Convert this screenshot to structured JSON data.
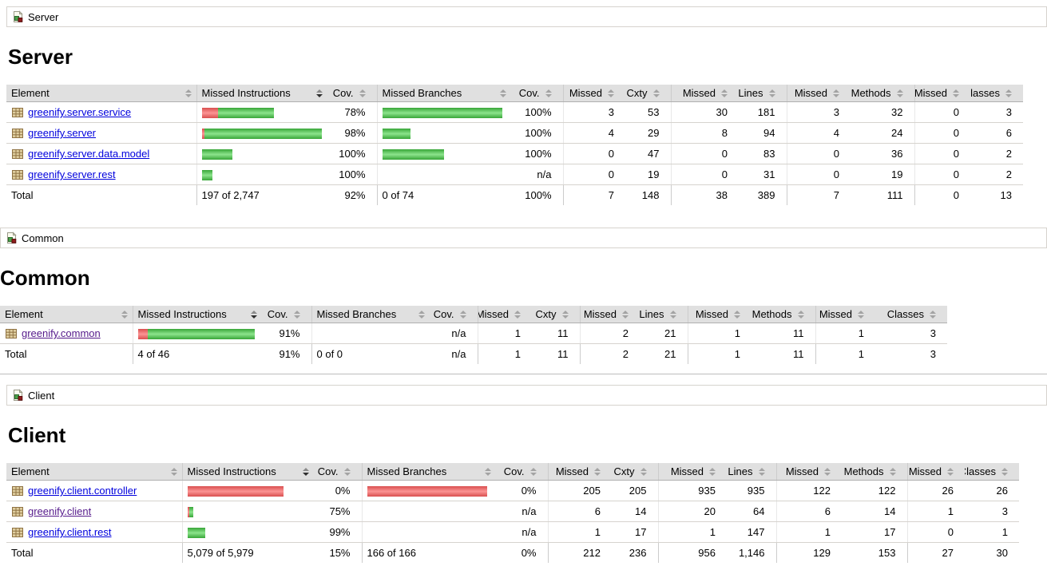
{
  "colors": {
    "covered_green": "#4ab64a",
    "missed_red": "#e05656",
    "header_bg": "#e0e0e0",
    "link_blue": "#0000dd",
    "link_visited_purple": "#551a8b"
  },
  "table_headers": {
    "element": "Element",
    "missed_instructions": "Missed Instructions",
    "cov": "Cov.",
    "missed_branches": "Missed Branches",
    "missed": "Missed",
    "cxty": "Cxty",
    "lines": "Lines",
    "methods": "Methods",
    "classes": "Classes"
  },
  "sections": [
    {
      "breadcrumb": "Server",
      "heading": "Server",
      "rows": [
        {
          "name": "greenify.server.service",
          "visited": false,
          "instr_bar": {
            "missed": 20,
            "covered": 70
          },
          "instr_cov": "78%",
          "branch_bar": {
            "missed": 0,
            "covered": 150
          },
          "branch_cov": "100%",
          "missed_cxty": "3",
          "cxty": "53",
          "missed_lines": "30",
          "lines": "181",
          "missed_methods": "3",
          "methods": "32",
          "missed_classes": "0",
          "classes": "3"
        },
        {
          "name": "greenify.server",
          "visited": false,
          "instr_bar": {
            "missed": 3,
            "covered": 147
          },
          "instr_cov": "98%",
          "branch_bar": {
            "missed": 0,
            "covered": 35
          },
          "branch_cov": "100%",
          "missed_cxty": "4",
          "cxty": "29",
          "missed_lines": "8",
          "lines": "94",
          "missed_methods": "4",
          "methods": "24",
          "missed_classes": "0",
          "classes": "6"
        },
        {
          "name": "greenify.server.data.model",
          "visited": false,
          "instr_bar": {
            "missed": 0,
            "covered": 38
          },
          "instr_cov": "100%",
          "branch_bar": {
            "missed": 0,
            "covered": 77
          },
          "branch_cov": "100%",
          "missed_cxty": "0",
          "cxty": "47",
          "missed_lines": "0",
          "lines": "83",
          "missed_methods": "0",
          "methods": "36",
          "missed_classes": "0",
          "classes": "2"
        },
        {
          "name": "greenify.server.rest",
          "visited": false,
          "instr_bar": {
            "missed": 0,
            "covered": 13
          },
          "instr_cov": "100%",
          "branch_bar": null,
          "branch_cov": "n/a",
          "missed_cxty": "0",
          "cxty": "19",
          "missed_lines": "0",
          "lines": "31",
          "missed_methods": "0",
          "methods": "19",
          "missed_classes": "0",
          "classes": "2"
        }
      ],
      "total": {
        "label": "Total",
        "instr": "197 of 2,747",
        "instr_cov": "92%",
        "branch": "0 of 74",
        "branch_cov": "100%",
        "missed_cxty": "7",
        "cxty": "148",
        "missed_lines": "38",
        "lines": "389",
        "missed_methods": "7",
        "methods": "111",
        "missed_classes": "0",
        "classes": "13"
      }
    },
    {
      "breadcrumb": "Common",
      "heading": "Common",
      "rows": [
        {
          "name": "greenify.common",
          "visited": true,
          "instr_bar": {
            "missed": 12,
            "covered": 134
          },
          "instr_cov": "91%",
          "branch_bar": null,
          "branch_cov": "n/a",
          "missed_cxty": "1",
          "cxty": "11",
          "missed_lines": "2",
          "lines": "21",
          "missed_methods": "1",
          "methods": "11",
          "missed_classes": "1",
          "classes": "3"
        }
      ],
      "total": {
        "label": "Total",
        "instr": "4 of 46",
        "instr_cov": "91%",
        "branch": "0 of 0",
        "branch_cov": "n/a",
        "missed_cxty": "1",
        "cxty": "11",
        "missed_lines": "2",
        "lines": "21",
        "missed_methods": "1",
        "methods": "11",
        "missed_classes": "1",
        "classes": "3"
      }
    },
    {
      "breadcrumb": "Client",
      "heading": "Client",
      "rows": [
        {
          "name": "greenify.client.controller",
          "visited": false,
          "instr_bar": {
            "missed": 120,
            "covered": 0
          },
          "instr_cov": "0%",
          "branch_bar": {
            "missed": 150,
            "covered": 0
          },
          "branch_cov": "0%",
          "missed_cxty": "205",
          "cxty": "205",
          "missed_lines": "935",
          "lines": "935",
          "missed_methods": "122",
          "methods": "122",
          "missed_classes": "26",
          "classes": "26"
        },
        {
          "name": "greenify.client",
          "visited": true,
          "instr_bar": {
            "missed": 2,
            "covered": 5
          },
          "instr_cov": "75%",
          "branch_bar": null,
          "branch_cov": "n/a",
          "missed_cxty": "6",
          "cxty": "14",
          "missed_lines": "20",
          "lines": "64",
          "missed_methods": "6",
          "methods": "14",
          "missed_classes": "1",
          "classes": "3"
        },
        {
          "name": "greenify.client.rest",
          "visited": false,
          "instr_bar": {
            "missed": 0,
            "covered": 22
          },
          "instr_cov": "99%",
          "branch_bar": null,
          "branch_cov": "n/a",
          "missed_cxty": "1",
          "cxty": "17",
          "missed_lines": "1",
          "lines": "147",
          "missed_methods": "1",
          "methods": "17",
          "missed_classes": "0",
          "classes": "1"
        }
      ],
      "total": {
        "label": "Total",
        "instr": "5,079 of 5,979",
        "instr_cov": "15%",
        "branch": "166 of 166",
        "branch_cov": "0%",
        "missed_cxty": "212",
        "cxty": "236",
        "missed_lines": "956",
        "lines": "1,146",
        "missed_methods": "129",
        "methods": "153",
        "missed_classes": "27",
        "classes": "30"
      }
    }
  ]
}
